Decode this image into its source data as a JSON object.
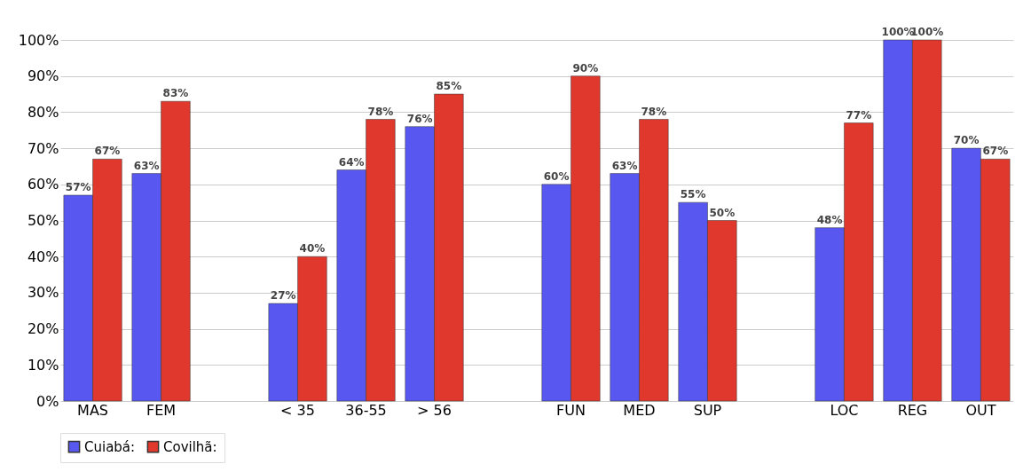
{
  "chart_data": {
    "type": "bar",
    "categories": [
      "MAS",
      "FEM",
      null,
      "< 35",
      "36-55",
      "> 56",
      null,
      "FUN",
      "MED",
      "SUP",
      null,
      "LOC",
      "REG",
      "OUT"
    ],
    "series": [
      {
        "name": "Cuiabá:",
        "color": "#5858f0",
        "values": [
          57,
          63,
          null,
          27,
          64,
          76,
          null,
          60,
          63,
          55,
          null,
          48,
          100,
          70
        ],
        "value_labels": [
          "57%",
          "63%",
          null,
          "27%",
          "64%",
          "76%",
          null,
          "60%",
          "63%",
          "55%",
          null,
          "48%",
          "100%",
          "70%"
        ]
      },
      {
        "name": "Covilhã:",
        "color": "#e0382c",
        "values": [
          67,
          83,
          null,
          40,
          78,
          85,
          null,
          90,
          78,
          50,
          null,
          77,
          100,
          67
        ],
        "value_labels": [
          "67%",
          "83%",
          null,
          "40%",
          "78%",
          "85%",
          null,
          "90%",
          "78%",
          "50%",
          null,
          "77%",
          "100%",
          "67%"
        ]
      }
    ],
    "ylim": [
      0,
      100
    ],
    "yticks": [
      {
        "value": 0,
        "label": "0%"
      },
      {
        "value": 10,
        "label": "10%"
      },
      {
        "value": 20,
        "label": "20%"
      },
      {
        "value": 30,
        "label": "30%"
      },
      {
        "value": 40,
        "label": "40%"
      },
      {
        "value": 50,
        "label": "50%"
      },
      {
        "value": 60,
        "label": "60%"
      },
      {
        "value": 70,
        "label": "70%"
      },
      {
        "value": 80,
        "label": "80%"
      },
      {
        "value": 90,
        "label": "90%"
      },
      {
        "value": 100,
        "label": "100%"
      }
    ],
    "grid": "y",
    "legend": "bottom"
  }
}
